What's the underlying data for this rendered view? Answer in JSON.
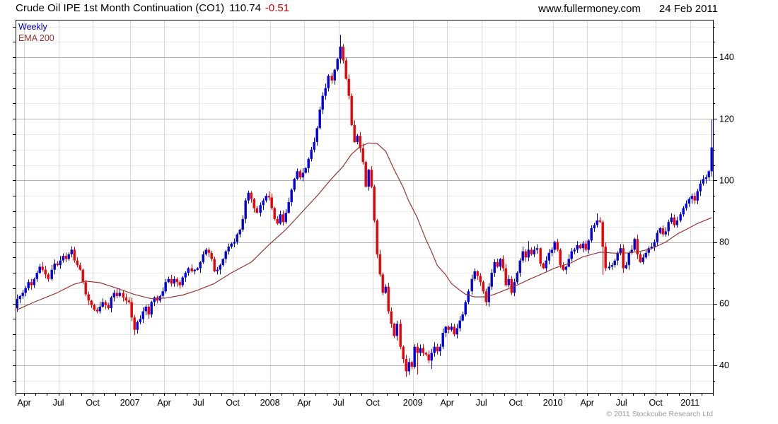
{
  "header": {
    "title": "Crude Oil IPE 1st Month Continuation (CO1)",
    "last_price": "110.74",
    "change": "-0.51",
    "website": "www.fullermoney.com",
    "date": "24 Feb 2011"
  },
  "legend": {
    "timeframe_label": "Weekly",
    "overlay_label": "EMA 200"
  },
  "footer": {
    "copyright": "© 2011 Stockcube Research Ltd"
  },
  "chart_data": {
    "type": "candlestick",
    "timeframe": "weekly",
    "title": "Crude Oil IPE 1st Month Continuation (CO1)",
    "last": 110.74,
    "change": -0.51,
    "grid": "on",
    "legend_position": "top-left",
    "y_axis": {
      "side": "right",
      "major_ticks": [
        40,
        60,
        80,
        100,
        120,
        140
      ],
      "minor_step": 5,
      "range": [
        31.0,
        152.2
      ]
    },
    "x_axis": {
      "tick_labels": [
        {
          "label": "Apr",
          "week": 3
        },
        {
          "label": "Jul",
          "week": 15
        },
        {
          "label": "Oct",
          "week": 27
        },
        {
          "label": "2007",
          "week": 40
        },
        {
          "label": "Apr",
          "week": 52
        },
        {
          "label": "Jul",
          "week": 64
        },
        {
          "label": "Oct",
          "week": 76
        },
        {
          "label": "2008",
          "week": 89
        },
        {
          "label": "Apr",
          "week": 101
        },
        {
          "label": "Jul",
          "week": 113
        },
        {
          "label": "Oct",
          "week": 125
        },
        {
          "label": "2009",
          "week": 139
        },
        {
          "label": "Apr",
          "week": 151
        },
        {
          "label": "Jul",
          "week": 163
        },
        {
          "label": "Oct",
          "week": 175
        },
        {
          "label": "2010",
          "week": 188
        },
        {
          "label": "Apr",
          "week": 200
        },
        {
          "label": "Jul",
          "week": 212
        },
        {
          "label": "Oct",
          "week": 224
        },
        {
          "label": "2011",
          "week": 236
        }
      ],
      "month_start_weeks": [
        0,
        3,
        7,
        11,
        15,
        19,
        23,
        27,
        31,
        35,
        40,
        44,
        48,
        52,
        56,
        60,
        64,
        68,
        72,
        76,
        80,
        84,
        89,
        93,
        97,
        101,
        105,
        109,
        113,
        117,
        121,
        125,
        130,
        134,
        139,
        143,
        147,
        151,
        155,
        159,
        163,
        167,
        171,
        175,
        179,
        183,
        188,
        192,
        196,
        200,
        204,
        208,
        212,
        216,
        220,
        224,
        228,
        232,
        236,
        240,
        244
      ]
    },
    "weeks": 244,
    "first_open": 58.5,
    "closes": [
      61.5,
      62.5,
      63.5,
      65,
      67,
      66,
      68,
      70,
      72,
      71,
      69.5,
      68,
      71,
      73,
      72.5,
      74,
      75.5,
      74.5,
      76,
      77.5,
      74,
      72.5,
      71,
      67,
      63,
      61,
      59.5,
      58,
      57.5,
      59,
      60.5,
      59.5,
      58.5,
      62,
      63.5,
      62.5,
      63.5,
      62,
      61,
      60.5,
      55.5,
      51.5,
      54,
      55,
      57.5,
      59,
      56.5,
      60.5,
      62,
      61,
      62.5,
      64,
      67,
      68,
      66.5,
      68,
      67,
      66,
      68.5,
      70,
      71.5,
      70.5,
      71,
      71.5,
      73.5,
      76,
      77.5,
      76.5,
      74.5,
      70.5,
      71,
      72.5,
      74.5,
      77,
      78.5,
      79.5,
      80,
      82.5,
      84,
      87.5,
      93.5,
      96,
      94,
      91,
      89.5,
      92,
      93.5,
      95,
      94.5,
      91,
      87.5,
      86,
      89,
      86.5,
      89.5,
      93,
      97,
      100.5,
      103,
      101,
      102.5,
      104,
      107,
      110,
      112.5,
      117,
      123,
      127.5,
      130,
      134,
      132.5,
      136,
      139.5,
      143.5,
      139,
      133,
      127.5,
      118,
      112.5,
      114.5,
      110.5,
      106,
      98,
      103.5,
      98,
      87,
      76,
      69.5,
      63.5,
      65.5,
      57.5,
      53.5,
      49.5,
      53.5,
      46,
      42,
      38,
      41,
      39.5,
      46,
      44,
      45.5,
      44,
      43.5,
      41.5,
      44,
      46,
      44.5,
      46,
      50.5,
      52.5,
      51.5,
      52.5,
      50,
      52,
      54.5,
      56.5,
      60.5,
      64,
      68,
      70.5,
      69,
      67,
      64,
      60.5,
      65.5,
      70,
      73.5,
      72,
      74.5,
      71.5,
      66,
      68,
      63.5,
      67,
      70,
      74,
      77,
      75,
      77.5,
      76,
      77.5,
      78,
      73,
      71.5,
      74,
      76.5,
      77.5,
      80,
      77.5,
      72.5,
      71,
      72,
      74.5,
      77,
      77.5,
      79,
      78,
      79.5,
      77.5,
      80.5,
      84.5,
      85.5,
      87,
      86.5,
      78.5,
      71.5,
      72,
      72.5,
      74,
      76.5,
      78,
      71.5,
      72.5,
      76.5,
      77.5,
      81,
      76,
      73.5,
      75,
      76.5,
      78,
      78.5,
      80,
      83,
      84.5,
      82.5,
      83.5,
      86.5,
      88,
      85.5,
      87,
      89,
      91,
      92.5,
      94,
      95,
      93.5,
      96.5,
      99,
      100.5,
      101,
      103,
      110.74
    ],
    "overrides": {
      "19": {
        "high": 78.6
      },
      "41": {
        "low": 49.8
      },
      "81": {
        "high": 96.7
      },
      "113": {
        "high": 147.3
      },
      "136": {
        "low": 36.2
      },
      "140": {
        "low": 37.0
      },
      "145": {
        "low": 38.8
      },
      "164": {
        "low": 59.3
      },
      "179": {
        "high": 80.3
      },
      "203": {
        "high": 89.3
      },
      "205": {
        "low": 69.4
      },
      "243": {
        "open": 103.0,
        "high": 119.8,
        "low": 101.3
      }
    },
    "ema_points": [
      [
        0,
        58
      ],
      [
        6,
        60.5
      ],
      [
        14,
        63.5
      ],
      [
        20,
        66.3
      ],
      [
        24,
        67.3
      ],
      [
        29,
        66.8
      ],
      [
        35,
        65
      ],
      [
        41,
        63
      ],
      [
        47,
        61.6
      ],
      [
        52,
        61.8
      ],
      [
        58,
        62.8
      ],
      [
        63,
        64.3
      ],
      [
        69,
        66.5
      ],
      [
        75,
        70
      ],
      [
        82,
        73.5
      ],
      [
        88,
        79
      ],
      [
        94,
        84
      ],
      [
        100,
        90
      ],
      [
        105,
        95
      ],
      [
        110,
        100.5
      ],
      [
        114,
        104.5
      ],
      [
        117,
        108.5
      ],
      [
        120,
        111
      ],
      [
        123,
        112.2
      ],
      [
        126,
        112
      ],
      [
        129,
        109.5
      ],
      [
        132,
        103.5
      ],
      [
        135,
        98
      ],
      [
        137,
        93.5
      ],
      [
        140,
        88
      ],
      [
        143,
        81
      ],
      [
        145,
        77
      ],
      [
        147,
        72.5
      ],
      [
        150,
        69.3
      ],
      [
        152,
        66.5
      ],
      [
        155,
        64.3
      ],
      [
        157,
        63
      ],
      [
        160,
        62.2
      ],
      [
        164,
        62.2
      ],
      [
        167,
        63
      ],
      [
        171,
        64.5
      ],
      [
        175,
        66
      ],
      [
        179,
        67.8
      ],
      [
        184,
        69.8
      ],
      [
        188,
        71.5
      ],
      [
        194,
        73.3
      ],
      [
        198,
        75.2
      ],
      [
        204,
        76.7
      ],
      [
        209,
        76.4
      ],
      [
        214,
        76.5
      ],
      [
        218,
        77
      ],
      [
        222,
        77.8
      ],
      [
        227,
        80
      ],
      [
        231,
        82.6
      ],
      [
        235,
        84.5
      ],
      [
        238,
        86
      ],
      [
        243,
        87.9
      ]
    ],
    "colors": {
      "up": "#0000dd",
      "down": "#ee0000",
      "ema": "#993333",
      "grid_major": "#b0b0b0",
      "grid_minor": "#ebebeb",
      "grid_vertical": "#d8d8d8",
      "axis": "#000000",
      "change_text": "#cc0000",
      "copyright_text": "#9a9a9a"
    }
  }
}
